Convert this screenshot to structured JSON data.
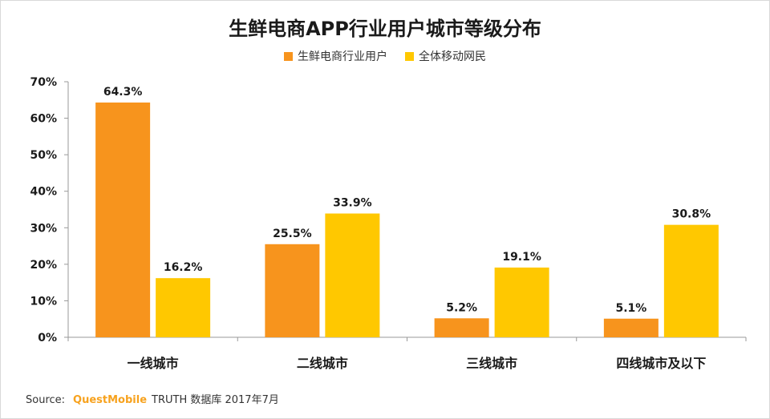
{
  "colors": {
    "series1": "#f7941d",
    "series2": "#ffc800",
    "axis": "#999999",
    "text": "#1a1a1a"
  },
  "chart_data": {
    "type": "bar",
    "title": "生鲜电商APP行业用户城市等级分布",
    "categories": [
      "一线城市",
      "二线城市",
      "三线城市",
      "四线城市及以下"
    ],
    "series": [
      {
        "name": "生鲜电商行业用户",
        "values": [
          64.3,
          25.5,
          5.2,
          5.1
        ]
      },
      {
        "name": "全体移动网民",
        "values": [
          16.2,
          33.9,
          19.1,
          30.8
        ]
      }
    ],
    "data_labels": [
      [
        "64.3%",
        "25.5%",
        "5.2%",
        "5.1%"
      ],
      [
        "16.2%",
        "33.9%",
        "19.1%",
        "30.8%"
      ]
    ],
    "yticks": [
      "0%",
      "10%",
      "20%",
      "30%",
      "40%",
      "50%",
      "60%",
      "70%"
    ],
    "ylim": [
      0,
      70
    ],
    "legend_position": "top-center",
    "grid": false
  },
  "source": {
    "prefix": "Source:",
    "brand": "QuestMobile",
    "suffix": "TRUTH 数据库 2017年7月"
  }
}
